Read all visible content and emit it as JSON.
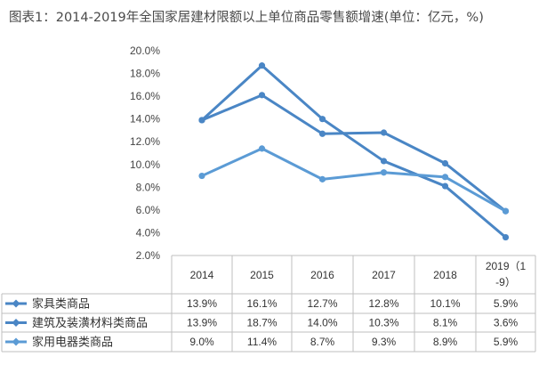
{
  "title": "图表1：2014-2019年全国家居建材限额以上单位商品零售额增速(单位：亿元，%)",
  "chart_data": {
    "type": "line",
    "title": "图表1：2014-2019年全国家居建材限额以上单位商品零售额增速(单位：亿元，%)",
    "categories": [
      "2014",
      "2015",
      "2016",
      "2017",
      "2018",
      "2019（1-9）"
    ],
    "ylim": [
      2.0,
      20.0
    ],
    "yticks": [
      "20.0%",
      "18.0%",
      "16.0%",
      "14.0%",
      "12.0%",
      "10.0%",
      "8.0%",
      "6.0%",
      "4.0%",
      "2.0%"
    ],
    "grid": false,
    "legend": "table-left",
    "series": [
      {
        "name": "家具类商品",
        "values": [
          13.9,
          16.1,
          12.7,
          12.8,
          10.1,
          5.9
        ],
        "labels": [
          "13.9%",
          "16.1%",
          "12.7%",
          "12.8%",
          "10.1%",
          "5.9%"
        ],
        "color": "#4a86c5"
      },
      {
        "name": "建筑及装潢材料类商品",
        "values": [
          13.9,
          18.7,
          14.0,
          10.3,
          8.1,
          3.6
        ],
        "labels": [
          "13.9%",
          "18.7%",
          "14.0%",
          "10.3%",
          "8.1%",
          "3.6%"
        ],
        "color": "#4a86c5"
      },
      {
        "name": "家用电器类商品",
        "values": [
          9.0,
          11.4,
          8.7,
          9.3,
          8.9,
          5.9
        ],
        "labels": [
          "9.0%",
          "11.4%",
          "8.7%",
          "9.3%",
          "8.9%",
          "5.9%"
        ],
        "color": "#5b9bd5"
      }
    ]
  }
}
